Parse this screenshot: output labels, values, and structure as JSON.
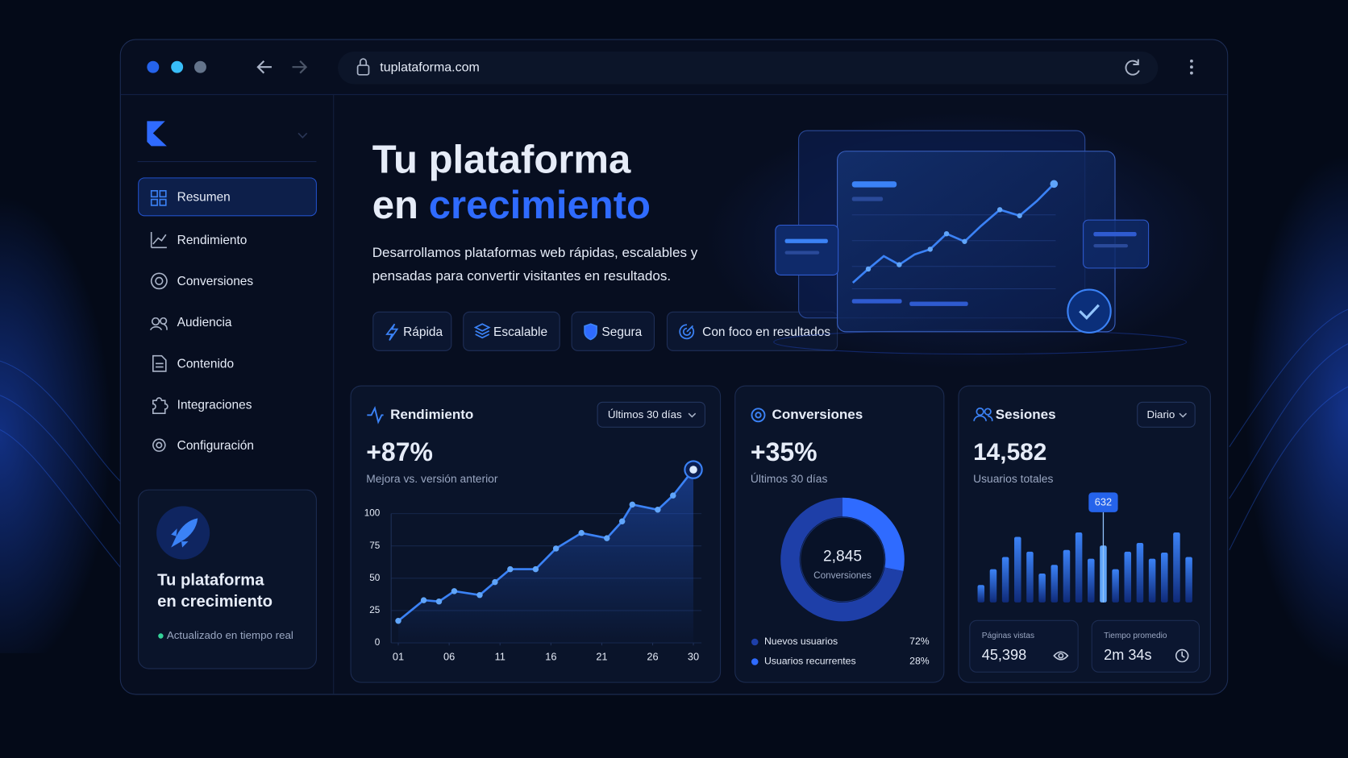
{
  "browser": {
    "url": "tuplataforma.com"
  },
  "sidebar": {
    "nav": [
      "Resumen",
      "Rendimiento",
      "Conversiones",
      "Audiencia",
      "Contenido",
      "Integraciones",
      "Configuración"
    ],
    "active": 0,
    "card": {
      "title_lines": [
        "Tu plataforma",
        "en crecimiento"
      ],
      "status": "Actualizado en tiempo real"
    }
  },
  "hero": {
    "title_line1": "Tu plataforma",
    "title_line2_prefix": "en",
    "title_highlight": "crecimiento",
    "description_lines": [
      "Desarrollamos plataformas web rápidas, escalables y",
      "pensadas para convertir visitantes en resultados."
    ],
    "features": [
      "Rápida",
      "Escalable",
      "Segura",
      "Con foco en resultados"
    ]
  },
  "performance": {
    "title": "Rendimiento",
    "period": "Últimos 30 días",
    "kpi": "+87%",
    "kpi_label": "Mejora vs. versión anterior",
    "chart": {
      "type": "line",
      "x": [
        1,
        3.5,
        5,
        6.5,
        9,
        10.5,
        12,
        14.5,
        16.5,
        19,
        21.5,
        23,
        24,
        26.5,
        28,
        30
      ],
      "values": [
        17,
        33,
        32,
        40,
        37,
        47,
        57,
        57,
        73,
        85,
        81,
        94,
        107,
        103,
        114,
        134
      ],
      "color": "#3b82f6",
      "xlim": [
        0.3,
        30.8
      ],
      "ylim": [
        0,
        135
      ],
      "xticks": [
        {
          "value": 1,
          "label": "01"
        },
        {
          "value": 6,
          "label": "06"
        },
        11,
        16,
        21,
        26,
        30
      ],
      "yticks": [
        0,
        25,
        50,
        75,
        100
      ],
      "grid": true
    }
  },
  "conversions": {
    "title": "Conversiones",
    "kpi": "+35%",
    "kpi_label": "Últimos 30 días",
    "chart": {
      "type": "donut",
      "center_value": "2,845",
      "center_label": "Conversiones",
      "categories": [
        "Nuevos usuarios",
        "Usuarios recurrentes"
      ],
      "values": [
        72,
        28
      ],
      "value_labels": [
        "72%",
        "28%"
      ],
      "colors": [
        "#1e3fa8",
        "#2f6bff"
      ]
    }
  },
  "sessions": {
    "title": "Sesiones",
    "period": "Diario",
    "kpi": "14,582",
    "kpi_label": "Usuarios totales",
    "chart": {
      "type": "bar",
      "values": [
        194,
        369,
        505,
        729,
        564,
        321,
        418,
        583,
        778,
        486,
        632,
        369,
        564,
        661,
        486,
        554,
        778,
        505
      ],
      "ylim": [
        0,
        850
      ],
      "highlight": 10,
      "color": "#3b82f6"
    },
    "tiles": [
      {
        "label": "Páginas vistas",
        "value": "45,398"
      },
      {
        "label": "Tiempo promedio",
        "value": "2m 34s"
      }
    ]
  }
}
